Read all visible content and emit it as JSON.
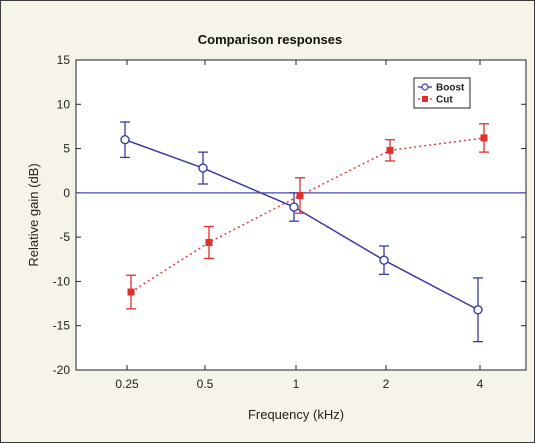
{
  "chart_data": {
    "type": "line",
    "title": "Comparison responses",
    "xlabel": "Frequency (kHz)",
    "ylabel": "Relative gain (dB)",
    "categories": [
      "0.25",
      "0.5",
      "1",
      "2",
      "4"
    ],
    "ylim": [
      -20,
      15
    ],
    "yticks": [
      15,
      10,
      5,
      0,
      -5,
      -10,
      -15,
      -20
    ],
    "grid": false,
    "reference_line": 0,
    "legend_position": "top-right",
    "series": [
      {
        "name": "Boost",
        "color": "#3a3aa6",
        "marker": "open-circle",
        "line": "solid",
        "x": [
          "0.25",
          "0.5",
          "1",
          "2",
          "4"
        ],
        "values": [
          6.0,
          2.8,
          -1.6,
          -7.6,
          -13.2
        ],
        "error": [
          2.0,
          1.8,
          1.6,
          1.6,
          3.6
        ]
      },
      {
        "name": "Cut",
        "color": "#e0302a",
        "marker": "filled-square",
        "line": "dotted",
        "x": [
          "0.25",
          "0.5",
          "1",
          "2",
          "4"
        ],
        "values": [
          -11.2,
          -5.6,
          -0.3,
          4.8,
          6.2
        ],
        "error": [
          1.9,
          1.8,
          2.0,
          1.2,
          1.6
        ]
      }
    ]
  }
}
